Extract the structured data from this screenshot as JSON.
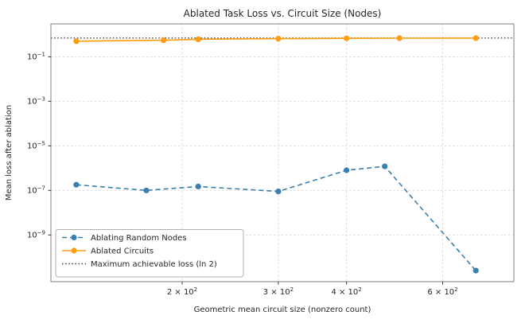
{
  "chart_data": {
    "type": "line",
    "title": "Ablated Task Loss vs. Circuit Size (Nodes)",
    "xlabel": "Geometric mean circuit size (nonzero count)",
    "ylabel": "Mean loss after ablation",
    "x_scale": "log",
    "y_scale": "log",
    "xlim": [
      115,
      810
    ],
    "ylim": [
      8e-12,
      3
    ],
    "grid": true,
    "x_ticks": [
      {
        "value": 200,
        "label": "2 × 10²",
        "coeff": "2",
        "exp": "2"
      },
      {
        "value": 300,
        "label": "3 × 10²",
        "coeff": "3",
        "exp": "2"
      },
      {
        "value": 400,
        "label": "4 × 10²",
        "coeff": "4",
        "exp": "2"
      },
      {
        "value": 600,
        "label": "6 × 10²",
        "coeff": "6",
        "exp": "2"
      }
    ],
    "y_ticks": [
      {
        "value": 0.1,
        "label": "10⁻¹",
        "exp": "−1"
      },
      {
        "value": 0.001,
        "label": "10⁻³",
        "exp": "−3"
      },
      {
        "value": 1e-05,
        "label": "10⁻⁵",
        "exp": "−5"
      },
      {
        "value": 1e-07,
        "label": "10⁻⁷",
        "exp": "−7"
      },
      {
        "value": 1e-09,
        "label": "10⁻⁹",
        "exp": "−9"
      }
    ],
    "series": [
      {
        "name": "Ablating Random Nodes",
        "color": "#3a7fae",
        "line": "dashed",
        "marker": "circle",
        "x": [
          128,
          172,
          214,
          300,
          400,
          470,
          690
        ],
        "y": [
          1.8e-07,
          1e-07,
          1.5e-07,
          9e-08,
          8e-07,
          1.2e-06,
          2.5e-11
        ]
      },
      {
        "name": "Ablated Circuits",
        "color": "#ff9d0e",
        "line": "solid",
        "marker": "circle",
        "x": [
          128,
          185,
          214,
          300,
          400,
          500,
          690
        ],
        "y": [
          0.5,
          0.55,
          0.61,
          0.65,
          0.67,
          0.68,
          0.69
        ]
      }
    ],
    "reference_line": {
      "name": "Maximum achievable loss (ln 2)",
      "value": 0.6931,
      "color": "#3c3c3c",
      "style": "dotted"
    },
    "legend": {
      "position": "lower left",
      "entries": [
        "Ablating Random Nodes",
        "Ablated Circuits",
        "Maximum achievable loss (ln 2)"
      ]
    }
  }
}
